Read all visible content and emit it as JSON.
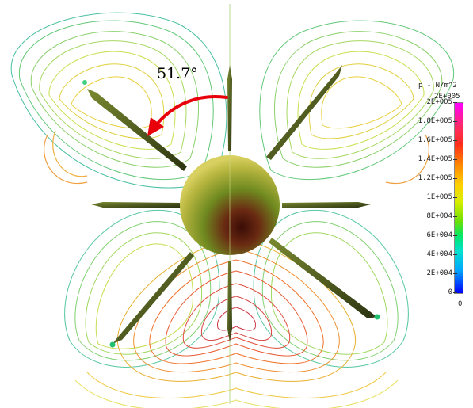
{
  "annotation": {
    "angle_text": "51.7°"
  },
  "legend": {
    "title": "p - N/m^2",
    "max_label": "2E+005",
    "ticks": [
      "2E+005",
      "1.8E+005",
      "1.6E+005",
      "1.4E+005",
      "1.2E+005",
      "1E+005",
      "8E+004",
      "6E+004",
      "4E+004",
      "2E+004",
      "0"
    ],
    "bottom_label": "0",
    "colors": [
      "#ff00ff",
      "#ff2f1a",
      "#ff8c00",
      "#ffd000",
      "#6fe000",
      "#00e0d0",
      "#0000ff"
    ]
  },
  "figure": {
    "background": "#ffffff",
    "arrow_color": "#e8000a",
    "sphere_colors": [
      "#c8c24a",
      "#6f8a20",
      "#4a1a0a"
    ]
  }
}
